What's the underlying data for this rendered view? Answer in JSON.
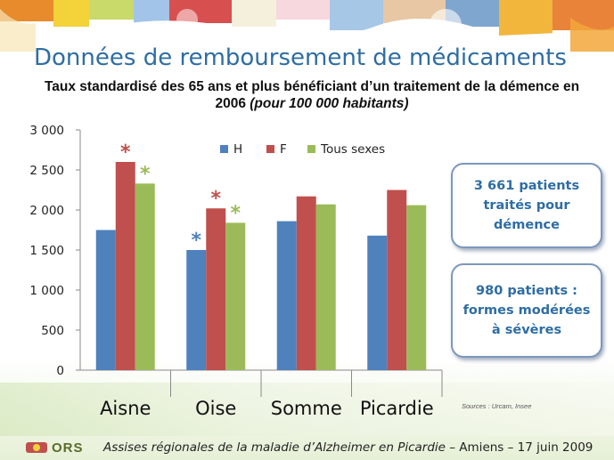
{
  "slide": {
    "title": "Données de remboursement de médicaments",
    "subtitle_main": "Taux standardisé des 65 ans et plus bénéficiant d’un traitement de la démence en 2006",
    "subtitle_paren": "(pour 100 000 habitants)",
    "sources": "Sources : Urcam, Insee",
    "footer_italic": "Assises régionales de la maladie d’Alzheimer en Picardie",
    "footer_rest": " – Amiens – 17 juin 2009",
    "logo_text": "ORS"
  },
  "callouts": [
    {
      "text": "3 661 patients traités pour démence"
    },
    {
      "text": "980 patients : formes modérées à sévères"
    }
  ],
  "colors": {
    "H": "#4f81bd",
    "F": "#c0504d",
    "Tous sexes": "#9bbb59",
    "title": "#2e6da4",
    "callout_border": "#7d97bd"
  },
  "chart_data": {
    "type": "bar",
    "title": "",
    "xlabel": "",
    "ylabel": "",
    "categories": [
      "Aisne",
      "Oise",
      "Somme",
      "Picardie"
    ],
    "series": [
      {
        "name": "H",
        "values": [
          1750,
          1500,
          1860,
          1680
        ]
      },
      {
        "name": "F",
        "values": [
          2600,
          2020,
          2170,
          2250
        ]
      },
      {
        "name": "Tous sexes",
        "values": [
          2330,
          1840,
          2070,
          2060
        ]
      }
    ],
    "ylim": [
      0,
      3000
    ],
    "yticks": [
      0,
      500,
      1000,
      1500,
      2000,
      2500,
      3000
    ],
    "ytick_labels": [
      "0",
      "500",
      "1 000",
      "1 500",
      "2 000",
      "2 500",
      "3 000"
    ],
    "grid": false,
    "legend": "top",
    "annotations": [
      {
        "category": "Aisne",
        "series": "F",
        "text": "*"
      },
      {
        "category": "Aisne",
        "series": "Tous sexes",
        "text": "*"
      },
      {
        "category": "Oise",
        "series": "H",
        "text": "*"
      },
      {
        "category": "Oise",
        "series": "F",
        "text": "*"
      },
      {
        "category": "Oise",
        "series": "Tous sexes",
        "text": "*"
      }
    ]
  }
}
